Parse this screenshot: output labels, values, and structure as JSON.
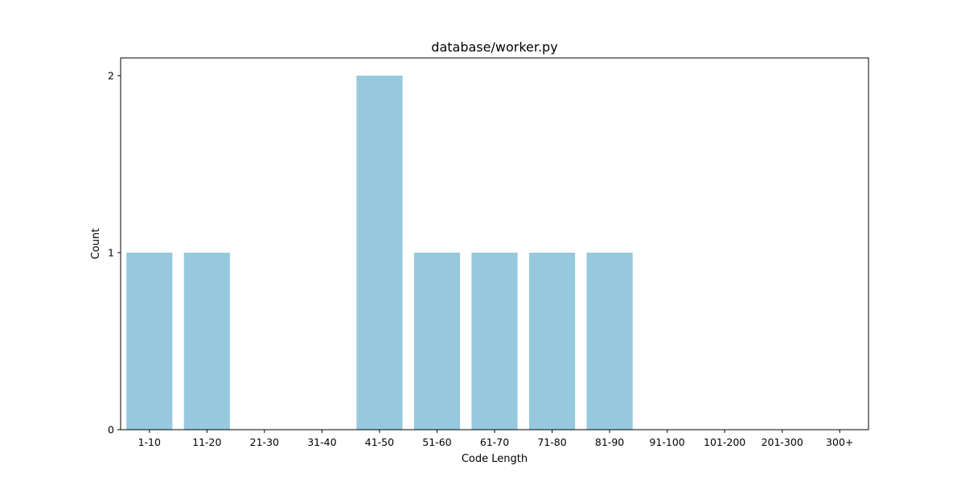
{
  "chart_data": {
    "type": "bar",
    "title": "database/worker.py",
    "xlabel": "Code Length",
    "ylabel": "Count",
    "categories": [
      "1-10",
      "11-20",
      "21-30",
      "31-40",
      "41-50",
      "51-60",
      "61-70",
      "71-80",
      "81-90",
      "91-100",
      "101-200",
      "201-300",
      "300+"
    ],
    "values": [
      1,
      1,
      0,
      0,
      2,
      1,
      1,
      1,
      1,
      0,
      0,
      0,
      0
    ],
    "ylim": [
      0,
      2.1
    ],
    "yticks": [
      0,
      1,
      2
    ],
    "bar_color": "#96c9de",
    "grid": false,
    "legend": "none"
  }
}
